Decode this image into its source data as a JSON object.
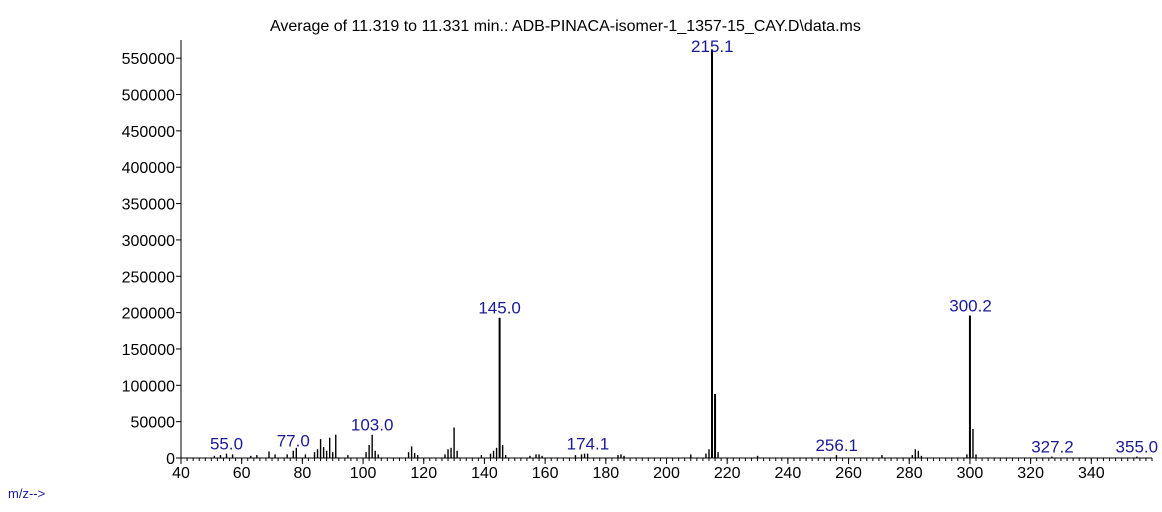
{
  "chart_data": {
    "type": "bar",
    "title": "Average of 11.319 to 11.331 min.: ADB-PINACA-isomer-1_1357-15_CAY.D\\data.ms",
    "xlabel": "m/z-->",
    "ylabel": "",
    "xlim": [
      40,
      360
    ],
    "ylim": [
      0,
      575000
    ],
    "x_ticks": [
      40,
      60,
      80,
      100,
      120,
      140,
      160,
      180,
      200,
      220,
      240,
      260,
      280,
      300,
      320,
      340
    ],
    "y_ticks": [
      0,
      50000,
      100000,
      150000,
      200000,
      250000,
      300000,
      350000,
      400000,
      450000,
      500000,
      550000
    ],
    "x_minor_step": 2,
    "grid": false,
    "colors": {
      "bars": "#000000",
      "labels": "#1a1a99",
      "axis": "#000000"
    },
    "peaks": [
      {
        "mz": 51,
        "intensity": 3000
      },
      {
        "mz": 53,
        "intensity": 4000
      },
      {
        "mz": 55,
        "intensity": 6000
      },
      {
        "mz": 57,
        "intensity": 5000
      },
      {
        "mz": 63,
        "intensity": 3000
      },
      {
        "mz": 65,
        "intensity": 4000
      },
      {
        "mz": 69,
        "intensity": 9000
      },
      {
        "mz": 71,
        "intensity": 5000
      },
      {
        "mz": 75,
        "intensity": 5000
      },
      {
        "mz": 77,
        "intensity": 10000
      },
      {
        "mz": 78,
        "intensity": 14000
      },
      {
        "mz": 81,
        "intensity": 5000
      },
      {
        "mz": 84,
        "intensity": 8000
      },
      {
        "mz": 85,
        "intensity": 12000
      },
      {
        "mz": 86,
        "intensity": 26000
      },
      {
        "mz": 87,
        "intensity": 15000
      },
      {
        "mz": 88,
        "intensity": 10000
      },
      {
        "mz": 89,
        "intensity": 28000
      },
      {
        "mz": 90,
        "intensity": 8000
      },
      {
        "mz": 91,
        "intensity": 32000
      },
      {
        "mz": 95,
        "intensity": 4000
      },
      {
        "mz": 101,
        "intensity": 8000
      },
      {
        "mz": 102,
        "intensity": 18000
      },
      {
        "mz": 103,
        "intensity": 32000
      },
      {
        "mz": 104,
        "intensity": 10000
      },
      {
        "mz": 105,
        "intensity": 5000
      },
      {
        "mz": 115,
        "intensity": 8000
      },
      {
        "mz": 116,
        "intensity": 16000
      },
      {
        "mz": 117,
        "intensity": 7000
      },
      {
        "mz": 118,
        "intensity": 4000
      },
      {
        "mz": 127,
        "intensity": 5000
      },
      {
        "mz": 128,
        "intensity": 12000
      },
      {
        "mz": 129,
        "intensity": 14000
      },
      {
        "mz": 130,
        "intensity": 42000
      },
      {
        "mz": 131,
        "intensity": 10000
      },
      {
        "mz": 139,
        "intensity": 4000
      },
      {
        "mz": 142,
        "intensity": 6000
      },
      {
        "mz": 143,
        "intensity": 10000
      },
      {
        "mz": 144,
        "intensity": 14000
      },
      {
        "mz": 145,
        "intensity": 193000
      },
      {
        "mz": 146,
        "intensity": 18000
      },
      {
        "mz": 147,
        "intensity": 4000
      },
      {
        "mz": 155,
        "intensity": 3000
      },
      {
        "mz": 157,
        "intensity": 5000
      },
      {
        "mz": 158,
        "intensity": 5000
      },
      {
        "mz": 159,
        "intensity": 3000
      },
      {
        "mz": 170,
        "intensity": 4000
      },
      {
        "mz": 172,
        "intensity": 5000
      },
      {
        "mz": 173,
        "intensity": 6000
      },
      {
        "mz": 174,
        "intensity": 6000
      },
      {
        "mz": 184,
        "intensity": 4000
      },
      {
        "mz": 185,
        "intensity": 5000
      },
      {
        "mz": 186,
        "intensity": 3000
      },
      {
        "mz": 208,
        "intensity": 5000
      },
      {
        "mz": 213,
        "intensity": 6000
      },
      {
        "mz": 214,
        "intensity": 12000
      },
      {
        "mz": 215,
        "intensity": 562000
      },
      {
        "mz": 216,
        "intensity": 88000
      },
      {
        "mz": 217,
        "intensity": 8000
      },
      {
        "mz": 230,
        "intensity": 3000
      },
      {
        "mz": 256,
        "intensity": 4000
      },
      {
        "mz": 271,
        "intensity": 4000
      },
      {
        "mz": 281,
        "intensity": 4000
      },
      {
        "mz": 282,
        "intensity": 12000
      },
      {
        "mz": 283,
        "intensity": 10000
      },
      {
        "mz": 284,
        "intensity": 3000
      },
      {
        "mz": 299,
        "intensity": 5000
      },
      {
        "mz": 300,
        "intensity": 196000
      },
      {
        "mz": 301,
        "intensity": 40000
      },
      {
        "mz": 302,
        "intensity": 5000
      },
      {
        "mz": 327,
        "intensity": 2000
      },
      {
        "mz": 355,
        "intensity": 2000
      }
    ],
    "peak_labels": [
      {
        "mz": 55,
        "label": "55.0",
        "intensity": 6000
      },
      {
        "mz": 77,
        "label": "77.0",
        "intensity": 10000
      },
      {
        "mz": 103,
        "label": "103.0",
        "intensity": 32000
      },
      {
        "mz": 145,
        "label": "145.0",
        "intensity": 193000
      },
      {
        "mz": 174.1,
        "label": "174.1",
        "intensity": 6000
      },
      {
        "mz": 215.1,
        "label": "215.1",
        "intensity": 562000
      },
      {
        "mz": 256.1,
        "label": "256.1",
        "intensity": 4000
      },
      {
        "mz": 300.2,
        "label": "300.2",
        "intensity": 196000
      },
      {
        "mz": 327.2,
        "label": "327.2",
        "intensity": 2000
      },
      {
        "mz": 355,
        "label": "355.0",
        "intensity": 2000
      }
    ]
  }
}
